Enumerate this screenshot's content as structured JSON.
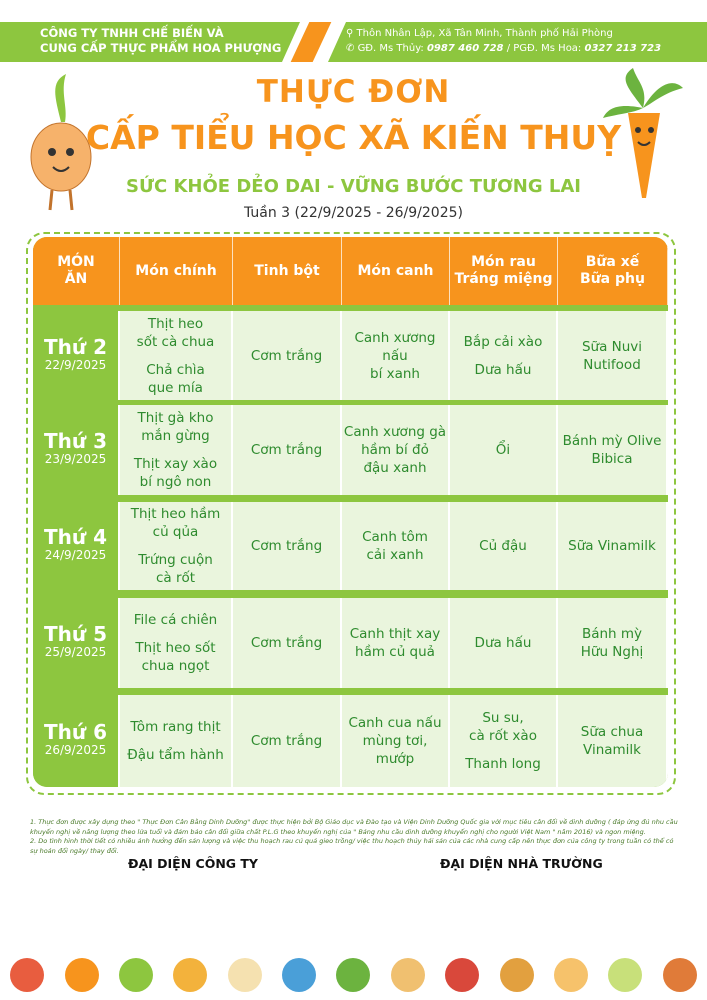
{
  "company": {
    "line1": "CÔNG TY TNHH CHẾ BIẾN VÀ",
    "line2": "CUNG CẤP THỰC PHẨM HOA PHƯỢNG"
  },
  "contact": {
    "address": "Thôn Nhân Lập, Xã Tân Minh, Thành phố Hải Phòng",
    "director_label": "GĐ. Ms Thủy:",
    "director_phone": "0987 460 728",
    "sep": "/",
    "deputy_label": "PGĐ. Ms Hoa:",
    "deputy_phone": "0327 213 723"
  },
  "title": {
    "line1": "THỰC ĐƠN",
    "line2": "CẤP TIỂU HỌC XÃ KIẾN THUỴ",
    "slogan": "SỨC KHỎE DẺO DAI - VỮNG BƯỚC TƯƠNG LAI",
    "week": "Tuần 3 (22/9/2025 - 26/9/2025)"
  },
  "colors": {
    "green": "#8dc63f",
    "orange": "#f7941d",
    "cell": "#eaf5dd",
    "text": "#2e8b2e"
  },
  "table": {
    "headers": [
      "MÓN\nĂN",
      "Món chính",
      "Tinh bột",
      "Món canh",
      "Món rau\nTráng miệng",
      "Bữa xế\nBữa phụ"
    ],
    "rows": [
      {
        "day": "Thứ 2",
        "date": "22/9/2025",
        "main": [
          "Thịt heo\nsốt cà chua",
          "Chả chìa\nque mía"
        ],
        "starch": [
          "Cơm trắng"
        ],
        "soup": [
          "Canh xương nấu\nbí xanh"
        ],
        "veg": [
          "Bắp cải xào",
          "Dưa hấu"
        ],
        "snack": [
          "Sữa Nuvi\nNutifood"
        ]
      },
      {
        "day": "Thứ 3",
        "date": "23/9/2025",
        "main": [
          "Thịt gà kho\nmắn gừng",
          "Thịt xay xào\nbí ngô non"
        ],
        "starch": [
          "Cơm trắng"
        ],
        "soup": [
          "Canh xương gà\nhầm bí đỏ\nđậu xanh"
        ],
        "veg": [
          "Ổi"
        ],
        "snack": [
          "Bánh mỳ Olive\nBibica"
        ]
      },
      {
        "day": "Thứ 4",
        "date": "24/9/2025",
        "main": [
          "Thịt heo hầm\ncủ qủa",
          "Trứng cuộn\ncà rốt"
        ],
        "starch": [
          "Cơm trắng"
        ],
        "soup": [
          "Canh tôm\ncải xanh"
        ],
        "veg": [
          "Củ đậu"
        ],
        "snack": [
          "Sữa Vinamilk"
        ]
      },
      {
        "day": "Thứ 5",
        "date": "25/9/2025",
        "main": [
          "File cá chiên",
          "Thịt heo sốt\nchua ngọt"
        ],
        "starch": [
          "Cơm trắng"
        ],
        "soup": [
          "Canh thịt xay\nhầm củ quả"
        ],
        "veg": [
          "Dưa hấu"
        ],
        "snack": [
          "Bánh mỳ\nHữu Nghị"
        ]
      },
      {
        "day": "Thứ 6",
        "date": "26/9/2025",
        "main": [
          "Tôm rang thịt",
          "Đậu tẩm hành"
        ],
        "starch": [
          "Cơm trắng"
        ],
        "soup": [
          "Canh cua nấu\nmùng tơi, mướp"
        ],
        "veg": [
          "Su su,\ncà rốt xào",
          "Thanh long"
        ],
        "snack": [
          "Sữa chua\nVinamilk"
        ]
      }
    ]
  },
  "notes": [
    "1. Thực đơn được xây dựng theo \" Thực Đơn Cân Bằng Dinh Dưỡng\" được thực hiện bởi Bộ Giáo dục và Đào tạo và Viện Dinh Dưỡng Quốc gia với mục tiêu cân đối về dinh dưỡng ( đáp ứng đủ nhu cầu khuyến nghị về năng lượng theo lứa tuổi và đảm bảo cân đối giữa chất P.L.G theo khuyến nghị của \" Bảng nhu cầu dinh dưỡng khuyến nghị cho người Việt Nam \" năm 2016) và ngon miệng.",
    "2. Do tình hình thời tiết có nhiều ảnh hưởng đến sản lượng và việc thu hoạch rau củ quả gieo trồng/ việc thu hoạch thủy hải sản của các nhà cung cấp nên thực đơn của công ty trong tuần có thể có sự hoán đổi ngày/ thay đổi."
  ],
  "signatures": {
    "company": "ĐẠI DIỆN CÔNG TY",
    "school": "ĐẠI DIỆN NHÀ TRƯỜNG"
  },
  "food_icons": [
    "vegetable-basket-icon",
    "pear-icon",
    "salad-plate-icon",
    "cookie-icon",
    "soup-bowl-icon",
    "fish-icon",
    "vegetable-dish-icon",
    "noodle-bowl-icon",
    "fruit-icon",
    "pizza-icon",
    "cake-slice-icon",
    "meal-plate-icon",
    "chicken-leg-icon"
  ]
}
